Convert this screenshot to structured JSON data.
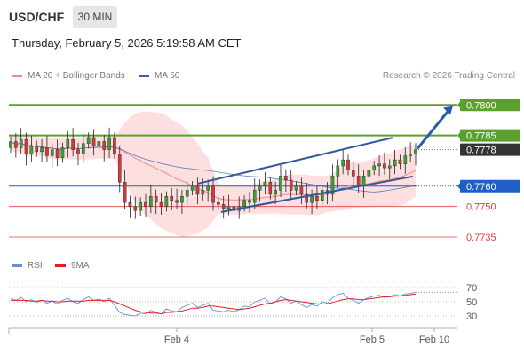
{
  "header": {
    "symbol": "USD/CHF",
    "timeframe": "30 MIN",
    "timestamp": "Thursday, February 5, 2026 5:19:58 AM CET"
  },
  "legend": {
    "ma20": "MA 20 + Bollinger Bands",
    "ma50": "MA 50",
    "credit": "Research © 2026 Trading Central"
  },
  "rsi_legend": {
    "rsi": "RSI",
    "ma9": "9MA"
  },
  "colors": {
    "resistance": "#5aa02c",
    "support": "#1f5fc8",
    "level_red": "#e04040",
    "candle_up": "#3aa03a",
    "candle_down": "#d43a3a",
    "bollinger": "#fdd9d9",
    "ma20": "#f08a8a",
    "ma50": "#3b5ea8",
    "rsi": "#6a8fd8",
    "rsi_ma": "#e02020"
  },
  "chart_data": [
    {
      "type": "candlestick",
      "title": "USD/CHF",
      "x_ticks": [
        "Feb 4",
        "Feb 5",
        "Feb 10"
      ],
      "ylim": [
        0.7728,
        0.7808
      ],
      "levels": [
        {
          "value": 0.78,
          "label": "0.7800",
          "kind": "resistance"
        },
        {
          "value": 0.7785,
          "label": "0.7785",
          "kind": "resistance"
        },
        {
          "value": 0.7778,
          "label": "0.7778",
          "kind": "last_price"
        },
        {
          "value": 0.776,
          "label": "0.7760",
          "kind": "support"
        },
        {
          "value": 0.775,
          "label": "0.7750",
          "kind": "level"
        },
        {
          "value": 0.7735,
          "label": "0.7735",
          "kind": "level"
        }
      ],
      "closes": [
        0.7782,
        0.7779,
        0.7783,
        0.7776,
        0.778,
        0.7777,
        0.7779,
        0.7775,
        0.7778,
        0.7774,
        0.7779,
        0.7783,
        0.7778,
        0.7776,
        0.7781,
        0.7784,
        0.778,
        0.7782,
        0.7778,
        0.7784,
        0.7776,
        0.7762,
        0.7752,
        0.775,
        0.7748,
        0.7752,
        0.775,
        0.7755,
        0.7752,
        0.775,
        0.7755,
        0.7753,
        0.7752,
        0.7755,
        0.7758,
        0.776,
        0.7756,
        0.7758,
        0.776,
        0.7752,
        0.7751,
        0.7749,
        0.775,
        0.7748,
        0.775,
        0.7753,
        0.7752,
        0.7758,
        0.776,
        0.7762,
        0.7756,
        0.7758,
        0.7765,
        0.7763,
        0.7758,
        0.776,
        0.7756,
        0.7752,
        0.7755,
        0.7753,
        0.7758,
        0.7756,
        0.7765,
        0.777,
        0.7773,
        0.7768,
        0.7765,
        0.776,
        0.7765,
        0.7768,
        0.777,
        0.7771,
        0.7769,
        0.777,
        0.7773,
        0.7771,
        0.7775,
        0.7776,
        0.7778
      ],
      "rsi": {
        "levels": [
          70,
          50,
          30
        ],
        "values": [
          55,
          52,
          56,
          50,
          53,
          49,
          52,
          48,
          51,
          47,
          52,
          55,
          50,
          48,
          53,
          57,
          52,
          54,
          50,
          55,
          45,
          35,
          32,
          31,
          30,
          34,
          33,
          38,
          35,
          33,
          40,
          37,
          36,
          42,
          45,
          48,
          42,
          45,
          48,
          38,
          37,
          36,
          38,
          36,
          39,
          44,
          43,
          50,
          52,
          55,
          47,
          50,
          57,
          54,
          48,
          51,
          46,
          42,
          46,
          44,
          50,
          48,
          56,
          60,
          62,
          55,
          52,
          48,
          53,
          56,
          58,
          59,
          56,
          57,
          60,
          58,
          61,
          62,
          63
        ],
        "ma9": [
          52,
          52,
          52,
          52,
          51,
          51,
          52,
          51,
          51,
          50,
          50,
          51,
          51,
          51,
          51,
          52,
          52,
          52,
          52,
          52,
          50,
          47,
          44,
          41,
          38,
          36,
          35,
          34,
          34,
          33,
          35,
          35,
          36,
          37,
          39,
          41,
          41,
          42,
          44,
          44,
          43,
          42,
          41,
          40,
          39,
          40,
          41,
          43,
          45,
          47,
          48,
          50,
          52,
          53,
          52,
          51,
          50,
          49,
          48,
          47,
          47,
          47,
          49,
          51,
          53,
          54,
          54,
          53,
          53,
          54,
          55,
          56,
          57,
          57,
          58,
          58,
          59,
          60,
          61
        ]
      }
    }
  ]
}
